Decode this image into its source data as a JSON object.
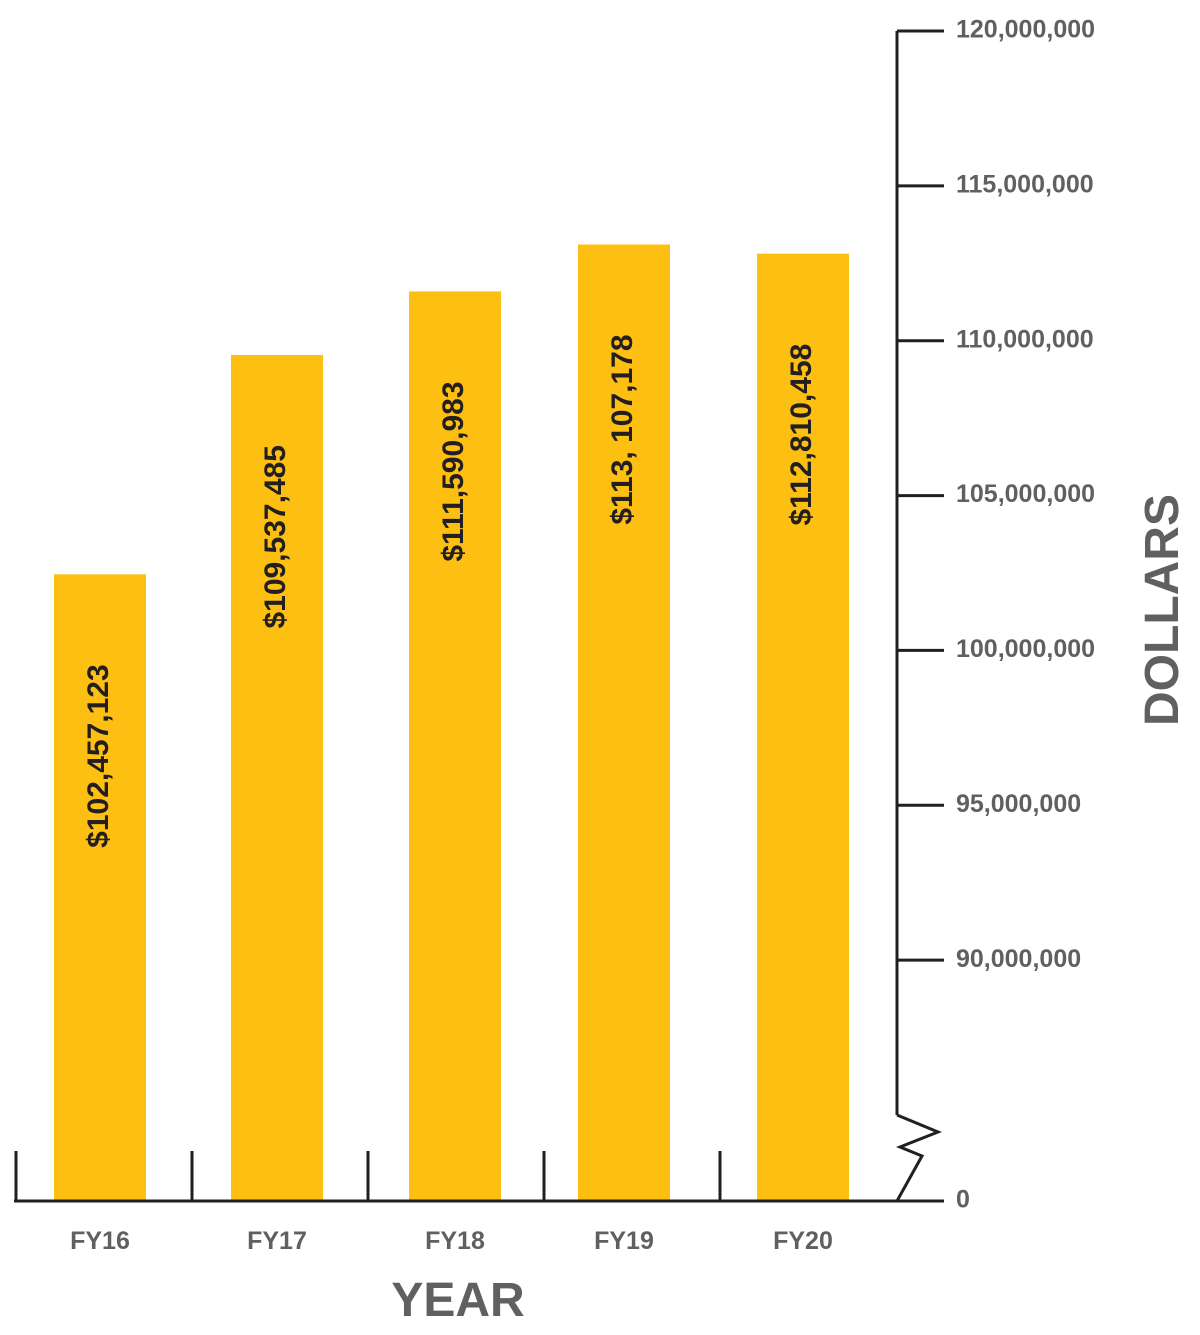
{
  "chart_data": {
    "type": "bar",
    "categories": [
      "FY16",
      "FY17",
      "FY18",
      "FY19",
      "FY20"
    ],
    "values": [
      102457123,
      109537485,
      111590983,
      113107178,
      112810458
    ],
    "value_labels": [
      "$102,457,123",
      "$109,537,485",
      "$111,590,983",
      "$113, 107,178",
      "$112,810,458"
    ],
    "title": "",
    "xlabel": "YEAR",
    "ylabel": "DOLLARS",
    "ylim": [
      86000000,
      120000000
    ],
    "y_axis_break": true,
    "y_axis_position": "right",
    "yticks": [
      {
        "value": 0,
        "label": "0"
      },
      {
        "value": 90000000,
        "label": "90,000,000"
      },
      {
        "value": 95000000,
        "label": "95,000,000"
      },
      {
        "value": 100000000,
        "label": "100,000,000"
      },
      {
        "value": 105000000,
        "label": "105,000,000"
      },
      {
        "value": 110000000,
        "label": "110,000,000"
      },
      {
        "value": 115000000,
        "label": "115,000,000"
      },
      {
        "value": 120000000,
        "label": "120,000,000"
      }
    ],
    "grid": false,
    "legend": "none",
    "colors": {
      "bar": "#fcbf12",
      "axis": "#231f20",
      "label_text": "#231f20",
      "axis_text": "#5f6062"
    }
  }
}
